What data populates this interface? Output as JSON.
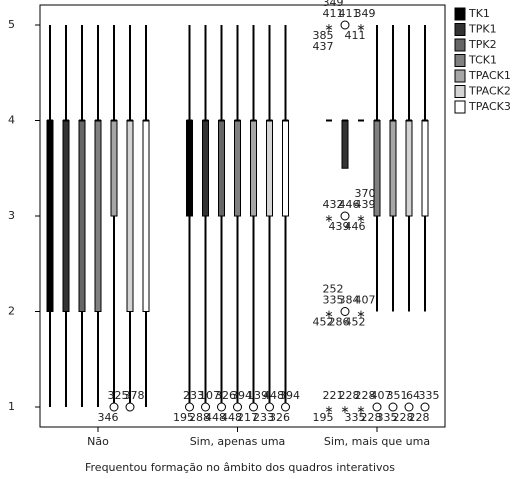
{
  "chart_data": {
    "type": "boxplot",
    "xlabel": "Frequentou formação no âmbito dos quadros interativos",
    "categories": [
      "Não",
      "Sim, apenas uma",
      "Sim, mais que uma"
    ],
    "ylim": [
      1,
      5
    ],
    "yticks": [
      1,
      2,
      3,
      4,
      5
    ],
    "legend": "top-right",
    "series": [
      {
        "name": "TK1",
        "color": "#000000",
        "boxes": [
          [
            1,
            2,
            4,
            4,
            5
          ],
          [
            1,
            3,
            4,
            4,
            5
          ],
          [
            4,
            4,
            4,
            4,
            4
          ]
        ],
        "outliers": [
          {
            "group": 1,
            "value": 1,
            "symbol": "circle",
            "labels": [
              "233",
              "195"
            ]
          },
          {
            "group": 2,
            "value": 5,
            "symbol": "star",
            "labels": [
              "411",
              "385",
              "349",
              "437"
            ]
          },
          {
            "group": 2,
            "value": 3,
            "symbol": "star",
            "labels": [
              "432"
            ]
          },
          {
            "group": 2,
            "value": 2,
            "symbol": "star",
            "labels": [
              "335",
              "452",
              "252"
            ]
          },
          {
            "group": 2,
            "value": 1,
            "symbol": "star",
            "labels": [
              "221",
              "195"
            ]
          }
        ]
      },
      {
        "name": "TPK1",
        "color": "#333333",
        "boxes": [
          [
            1,
            2,
            4,
            4,
            5
          ],
          [
            1,
            3,
            4,
            4,
            5
          ],
          [
            3.5,
            3.5,
            4,
            4,
            4
          ]
        ],
        "outliers": [
          {
            "group": 1,
            "value": 1,
            "symbol": "circle",
            "labels": [
              "107",
              "288"
            ]
          },
          {
            "group": 2,
            "value": 5,
            "symbol": "circle",
            "labels": [
              "411"
            ]
          },
          {
            "group": 2,
            "value": 3,
            "symbol": "circle",
            "labels": [
              "446",
              "439"
            ]
          },
          {
            "group": 2,
            "value": 2,
            "symbol": "circle",
            "labels": [
              "384",
              "286"
            ]
          },
          {
            "group": 2,
            "value": 1,
            "symbol": "star",
            "labels": [
              "228"
            ]
          }
        ]
      },
      {
        "name": "TPK2",
        "color": "#666666",
        "boxes": [
          [
            1,
            2,
            4,
            4,
            5
          ],
          [
            1,
            3,
            4,
            4,
            5
          ],
          [
            4,
            4,
            4,
            4,
            4
          ]
        ],
        "outliers": [
          {
            "group": 1,
            "value": 1,
            "symbol": "circle",
            "labels": [
              "326",
              "448"
            ]
          },
          {
            "group": 2,
            "value": 5,
            "symbol": "star",
            "labels": [
              "349",
              "411"
            ]
          },
          {
            "group": 2,
            "value": 3,
            "symbol": "star",
            "labels": [
              "439",
              "446",
              "370"
            ]
          },
          {
            "group": 2,
            "value": 2,
            "symbol": "star",
            "labels": [
              "407",
              "452"
            ]
          },
          {
            "group": 2,
            "value": 1,
            "symbol": "star",
            "labels": [
              "228",
              "335"
            ]
          }
        ]
      },
      {
        "name": "TCK1",
        "color": "#808080",
        "boxes": [
          [
            1,
            2,
            4,
            4,
            5
          ],
          [
            1,
            3,
            4,
            4,
            5
          ],
          [
            2,
            3,
            4,
            4,
            5
          ]
        ],
        "outliers": [
          {
            "group": 1,
            "value": 1,
            "symbol": "circle",
            "labels": [
              "394",
              "448"
            ]
          },
          {
            "group": 2,
            "value": 1,
            "symbol": "circle",
            "labels": [
              "407",
              "228"
            ]
          }
        ]
      },
      {
        "name": "TPACK1",
        "color": "#a6a6a6",
        "boxes": [
          [
            1,
            3,
            4,
            4,
            5
          ],
          [
            1,
            3,
            4,
            4,
            5
          ],
          [
            2,
            3,
            4,
            4,
            5
          ]
        ],
        "outliers": [
          {
            "group": 0,
            "value": 1,
            "symbol": "circle",
            "labels": [
              "325",
              "346"
            ]
          },
          {
            "group": 1,
            "value": 1,
            "symbol": "circle",
            "labels": [
              "139",
              "217"
            ]
          },
          {
            "group": 2,
            "value": 1,
            "symbol": "circle",
            "labels": [
              "351",
              "335"
            ]
          }
        ]
      },
      {
        "name": "TPACK2",
        "color": "#d4d4d4",
        "boxes": [
          [
            1,
            2,
            4,
            4,
            5
          ],
          [
            1,
            3,
            4,
            4,
            5
          ],
          [
            2,
            3,
            4,
            4,
            5
          ]
        ],
        "outliers": [
          {
            "group": 0,
            "value": 1,
            "symbol": "circle",
            "labels": [
              "378"
            ]
          },
          {
            "group": 1,
            "value": 1,
            "symbol": "circle",
            "labels": [
              "448",
              "233"
            ]
          },
          {
            "group": 2,
            "value": 1,
            "symbol": "circle",
            "labels": [
              "64",
              "228"
            ]
          }
        ]
      },
      {
        "name": "TPACK3",
        "color": "#ffffff",
        "boxes": [
          [
            1,
            2,
            4,
            4,
            5
          ],
          [
            1,
            3,
            4,
            4,
            5
          ],
          [
            2,
            3,
            4,
            4,
            5
          ]
        ],
        "outliers": [
          {
            "group": 1,
            "value": 1,
            "symbol": "circle",
            "labels": [
              "394",
              "326"
            ]
          },
          {
            "group": 2,
            "value": 1,
            "symbol": "circle",
            "labels": [
              "335",
              "228"
            ]
          }
        ]
      }
    ]
  }
}
